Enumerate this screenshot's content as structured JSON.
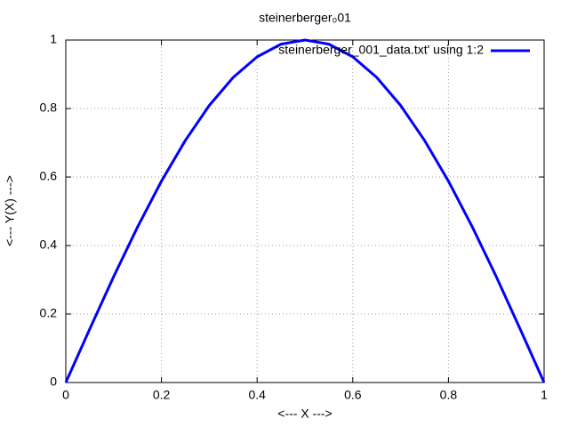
{
  "chart_data": {
    "type": "line",
    "title": "steinerberger₀01",
    "x_label": "<--- X --->",
    "y_label": "<--- Y(X) --->",
    "x": [
      0,
      0.05,
      0.1,
      0.15,
      0.2,
      0.25,
      0.3,
      0.35,
      0.4,
      0.45,
      0.5,
      0.55,
      0.6,
      0.65,
      0.7,
      0.75,
      0.8,
      0.85,
      0.9,
      0.95,
      1
    ],
    "series": [
      {
        "name": "'steinerberger_001_data.txt' using 1:2",
        "color": "#0000ff",
        "values": [
          0,
          0.156,
          0.309,
          0.454,
          0.588,
          0.707,
          0.809,
          0.891,
          0.951,
          0.988,
          1,
          0.988,
          0.951,
          0.891,
          0.809,
          0.707,
          0.588,
          0.454,
          0.309,
          0.156,
          0
        ]
      }
    ],
    "xlim": [
      0,
      1
    ],
    "xticks": [
      0,
      0.2,
      0.4,
      0.6,
      0.8,
      1
    ],
    "ylim": [
      0,
      1
    ],
    "yticks": [
      0,
      0.2,
      0.4,
      0.6,
      0.8,
      1
    ],
    "grid": true,
    "legend": "top-right"
  }
}
